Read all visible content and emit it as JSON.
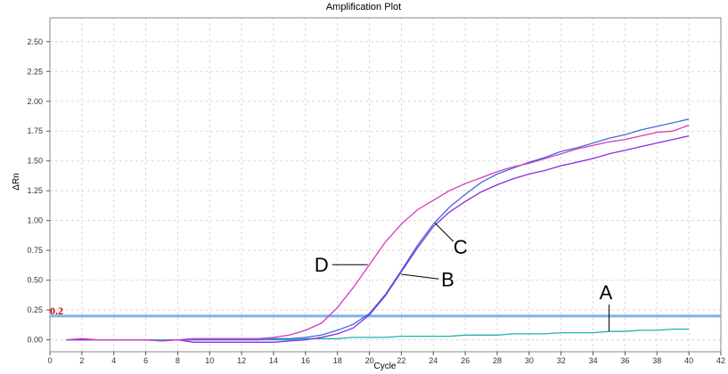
{
  "chart_data": {
    "type": "line",
    "title": "Amplification Plot",
    "xlabel": "Cycle",
    "ylabel": "ΔRn",
    "xlim": [
      0,
      42
    ],
    "ylim": [
      -0.1,
      2.7
    ],
    "xticks": [
      0,
      2,
      4,
      6,
      8,
      10,
      12,
      14,
      16,
      18,
      20,
      22,
      24,
      26,
      28,
      30,
      32,
      34,
      36,
      38,
      40,
      42
    ],
    "yticks": [
      0.0,
      0.25,
      0.5,
      0.75,
      1.0,
      1.25,
      1.5,
      1.75,
      2.0,
      2.25,
      2.5
    ],
    "ytick_labels": [
      "0.00",
      "0.25",
      "0.50",
      "0.75",
      "1.00",
      "1.25",
      "1.50",
      "1.75",
      "2.00",
      "2.25",
      "2.50"
    ],
    "grid": true,
    "threshold": {
      "value": 0.2,
      "label": "0.2",
      "color": "#7fb2ea",
      "label_color": "#cc0000"
    },
    "x": [
      1,
      2,
      3,
      4,
      5,
      6,
      7,
      8,
      9,
      10,
      11,
      12,
      13,
      14,
      15,
      16,
      17,
      18,
      19,
      20,
      21,
      22,
      23,
      24,
      25,
      26,
      27,
      28,
      29,
      30,
      31,
      32,
      33,
      34,
      35,
      36,
      37,
      38,
      39,
      40
    ],
    "series": [
      {
        "color": "#20b2aa",
        "values": [
          0.0,
          0.0,
          0.0,
          0.0,
          0.0,
          0.0,
          0.0,
          0.0,
          0.0,
          0.0,
          0.0,
          0.0,
          0.0,
          0.0,
          0.0,
          0.01,
          0.01,
          0.01,
          0.02,
          0.02,
          0.02,
          0.03,
          0.03,
          0.03,
          0.03,
          0.04,
          0.04,
          0.04,
          0.05,
          0.05,
          0.05,
          0.06,
          0.06,
          0.06,
          0.07,
          0.07,
          0.08,
          0.08,
          0.09,
          0.09
        ]
      },
      {
        "color": "#4169e1",
        "values": [
          0.0,
          0.0,
          0.0,
          0.0,
          0.0,
          0.0,
          -0.01,
          0.0,
          0.0,
          0.0,
          0.0,
          0.0,
          0.0,
          0.01,
          0.01,
          0.02,
          0.04,
          0.08,
          0.13,
          0.22,
          0.38,
          0.58,
          0.79,
          0.97,
          1.11,
          1.22,
          1.32,
          1.39,
          1.44,
          1.49,
          1.53,
          1.58,
          1.61,
          1.65,
          1.69,
          1.72,
          1.76,
          1.79,
          1.82,
          1.85
        ]
      },
      {
        "color": "#8a2be2",
        "values": [
          0.0,
          0.0,
          0.0,
          0.0,
          0.0,
          0.0,
          -0.01,
          0.0,
          -0.02,
          -0.02,
          -0.02,
          -0.02,
          -0.02,
          -0.02,
          -0.01,
          0.0,
          0.02,
          0.05,
          0.1,
          0.21,
          0.37,
          0.57,
          0.77,
          0.95,
          1.07,
          1.16,
          1.24,
          1.3,
          1.35,
          1.39,
          1.42,
          1.46,
          1.49,
          1.52,
          1.56,
          1.59,
          1.62,
          1.65,
          1.68,
          1.71
        ]
      },
      {
        "color": "#d63abf",
        "values": [
          0.0,
          0.01,
          0.0,
          0.0,
          0.0,
          0.0,
          -0.01,
          0.0,
          0.01,
          0.01,
          0.01,
          0.01,
          0.01,
          0.02,
          0.04,
          0.08,
          0.14,
          0.27,
          0.44,
          0.63,
          0.82,
          0.97,
          1.09,
          1.17,
          1.25,
          1.31,
          1.36,
          1.41,
          1.45,
          1.48,
          1.52,
          1.56,
          1.6,
          1.63,
          1.66,
          1.68,
          1.71,
          1.74,
          1.75,
          1.8
        ]
      }
    ],
    "annotations": [
      {
        "label": "A",
        "x": 35.0,
        "y": 0.07,
        "text_x": 34.8,
        "text_y": 0.4
      },
      {
        "label": "B",
        "x": 22.0,
        "y": 0.55,
        "text_x": 24.9,
        "text_y": 0.51
      },
      {
        "label": "C",
        "x": 24.1,
        "y": 0.98,
        "text_x": 25.7,
        "text_y": 0.78
      },
      {
        "label": "D",
        "x": 19.9,
        "y": 0.63,
        "text_x": 17.0,
        "text_y": 0.63
      }
    ]
  }
}
